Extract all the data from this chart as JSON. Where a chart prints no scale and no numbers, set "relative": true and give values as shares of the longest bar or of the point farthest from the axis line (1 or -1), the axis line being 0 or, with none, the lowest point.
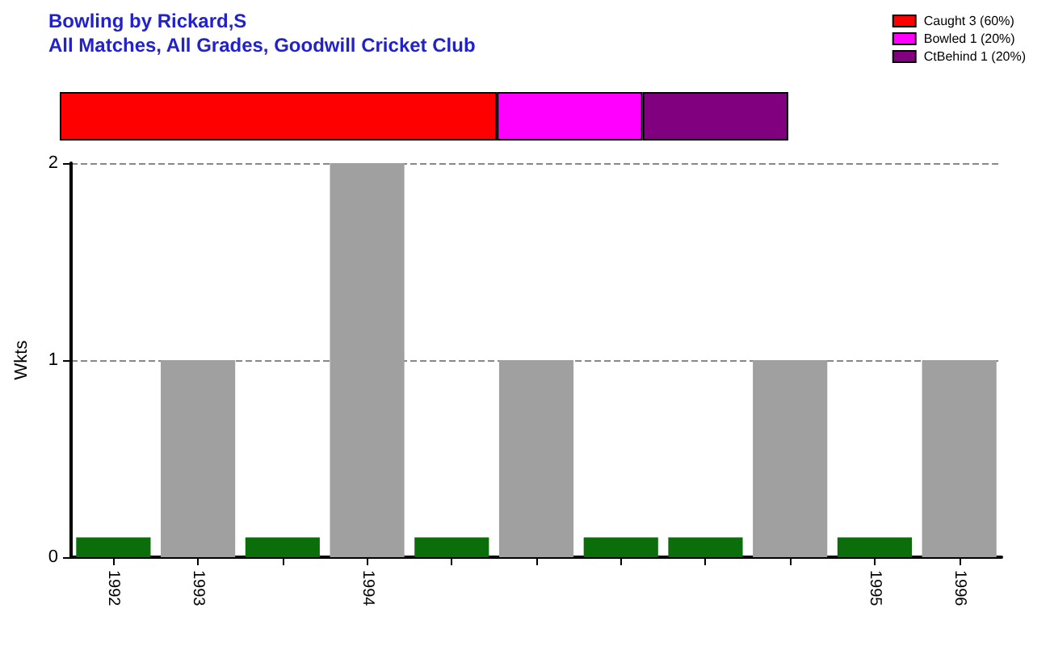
{
  "chart_data": [
    {
      "type": "bar",
      "title": "Bowling by Rickard,S",
      "subtitle": "All Matches, All Grades, Goodwill Cricket Club",
      "orientation": "horizontal",
      "stacked": true,
      "categories": [
        null
      ],
      "relative": true,
      "legend": "top right",
      "series": [
        {
          "name": "Caught 3 (60%)",
          "color": "#ff0000",
          "values": [
            0.6
          ]
        },
        {
          "name": "Bowled 1 (20%)",
          "color": "#ff00ff",
          "values": [
            0.2
          ]
        },
        {
          "name": "CtBehind 1 (20%)",
          "color": "#800080",
          "values": [
            0.2
          ]
        }
      ]
    },
    {
      "type": "bar",
      "ylabel": "Wkts",
      "categories": [
        "1992",
        "1993",
        null,
        "1994",
        null,
        null,
        null,
        null,
        null,
        "1995",
        "1996"
      ],
      "values": [
        0.1,
        1,
        0.1,
        2,
        0.1,
        1,
        0.1,
        0.1,
        1,
        0.1,
        1
      ],
      "colors": [
        "#0b6e0b",
        "#a0a0a0",
        "#0b6e0b",
        "#a0a0a0",
        "#0b6e0b",
        "#a0a0a0",
        "#0b6e0b",
        "#0b6e0b",
        "#a0a0a0",
        "#0b6e0b",
        "#a0a0a0"
      ],
      "ylim": [
        0,
        2
      ],
      "yticks": [
        0,
        1,
        2
      ],
      "grid": "y"
    }
  ]
}
